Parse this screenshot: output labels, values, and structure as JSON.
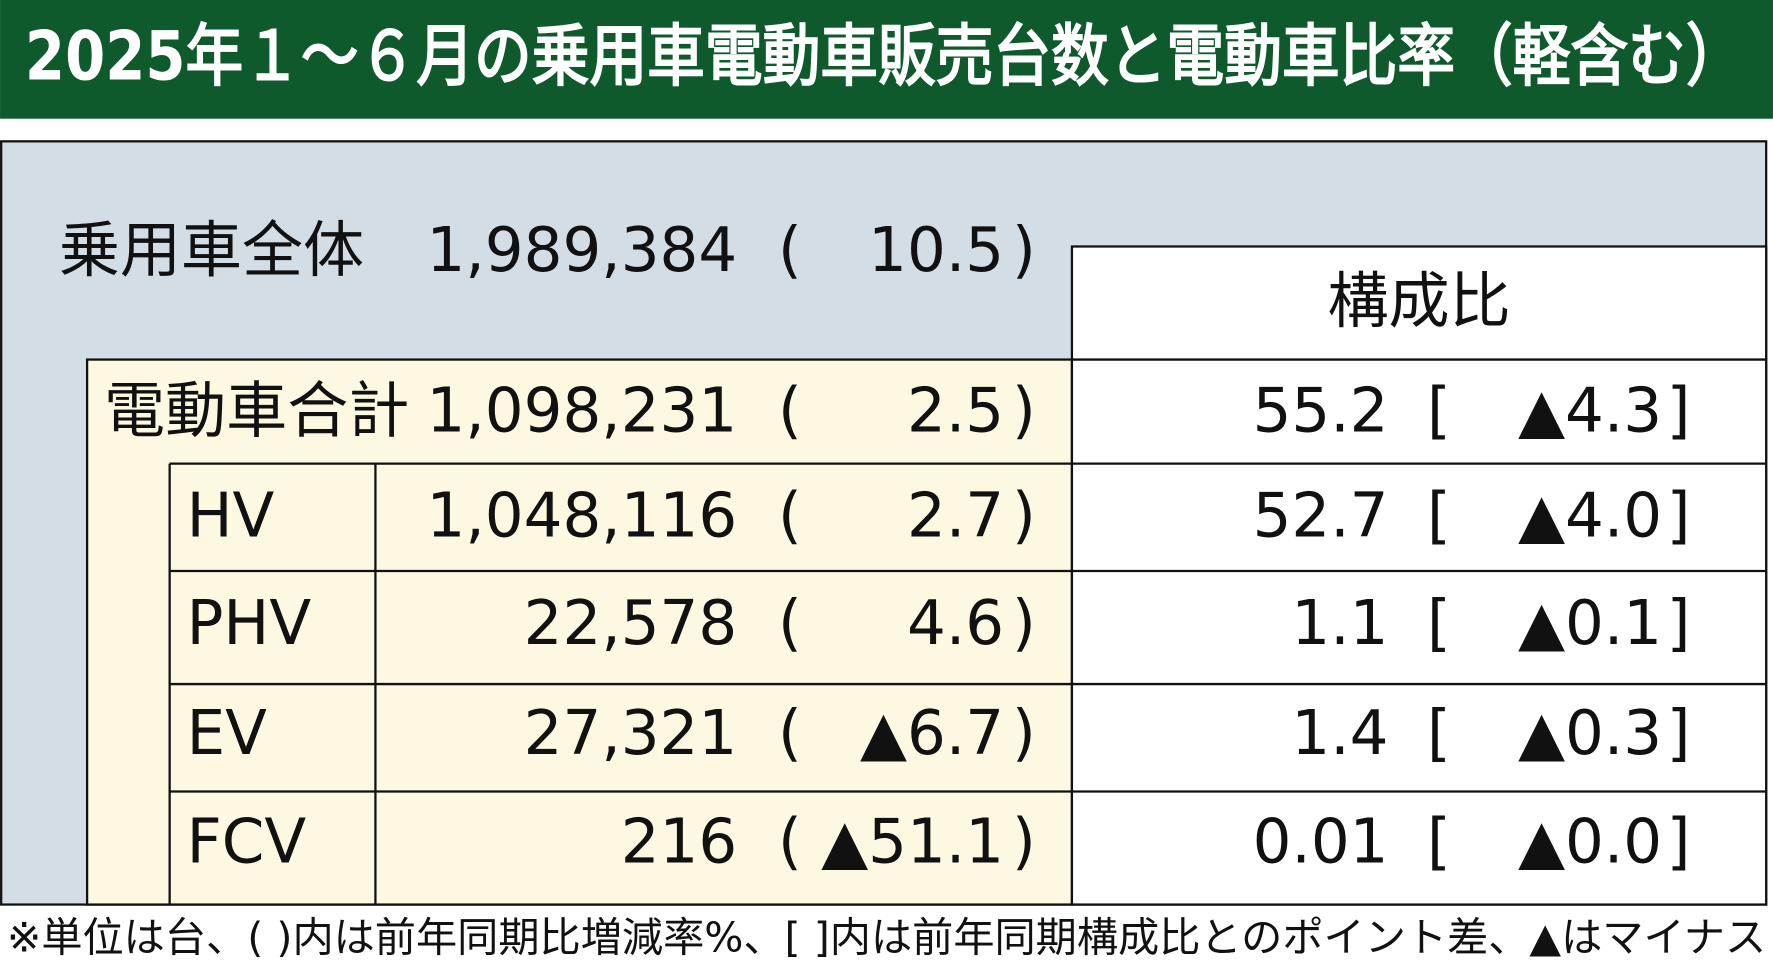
{
  "header": {
    "title": "2025年１～６月の乗用車電動車販売台数と電動車比率（軽含む）"
  },
  "table": {
    "paren": [
      "(",
      ")"
    ],
    "bracket": [
      "[",
      "]"
    ],
    "share_header": "構成比",
    "total": {
      "label": "乗用車全体",
      "units": "1,989,384",
      "change": "10.5"
    },
    "rows": [
      {
        "label": "電動車合計",
        "units": "1,098,231",
        "change": "2.5",
        "share": "55.2",
        "share_change": "▲4.3"
      },
      {
        "label": "HV",
        "units": "1,048,116",
        "change": "2.7",
        "share": "52.7",
        "share_change": "▲4.0"
      },
      {
        "label": "PHV",
        "units": "22,578",
        "change": "4.6",
        "share": "1.1",
        "share_change": "▲0.1"
      },
      {
        "label": "EV",
        "units": "27,321",
        "change": "▲6.7",
        "share": "1.4",
        "share_change": "▲0.3"
      },
      {
        "label": "FCV",
        "units": "216",
        "change": "▲51.1",
        "share": "0.01",
        "share_change": "▲0.0"
      }
    ]
  },
  "footnote": "※単位は台、( )内は前年同期比増減率%、[ ]内は前年同期構成比とのポイント差、▲はマイナス"
}
